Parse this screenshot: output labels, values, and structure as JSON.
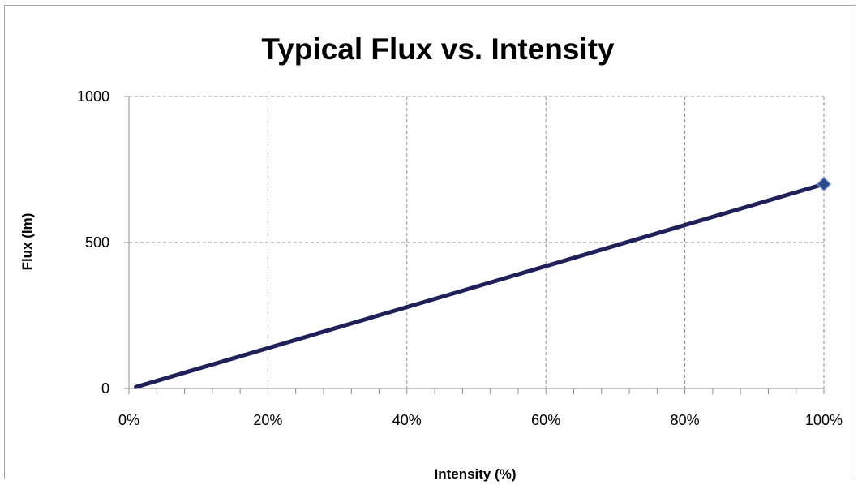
{
  "chart_data": {
    "type": "line",
    "title": "Typical Flux vs. Intensity",
    "xlabel": "Intensity (%)",
    "ylabel": "Flux (lm)",
    "x": [
      1,
      100
    ],
    "series": [
      {
        "values": [
          5,
          700
        ],
        "color": "#1f1f5a",
        "marker_color": "#2e4a8c"
      }
    ],
    "xlim": [
      0,
      100
    ],
    "ylim": [
      0,
      1000
    ],
    "x_ticks": [
      0,
      20,
      40,
      60,
      80,
      100
    ],
    "x_tick_labels": [
      "0%",
      "20%",
      "40%",
      "60%",
      "80%",
      "100%"
    ],
    "x_minor_step": 4,
    "y_ticks": [
      0,
      500,
      1000
    ],
    "y_tick_labels": [
      "0",
      "500",
      "1000"
    ],
    "grid": true,
    "legend": "none"
  }
}
